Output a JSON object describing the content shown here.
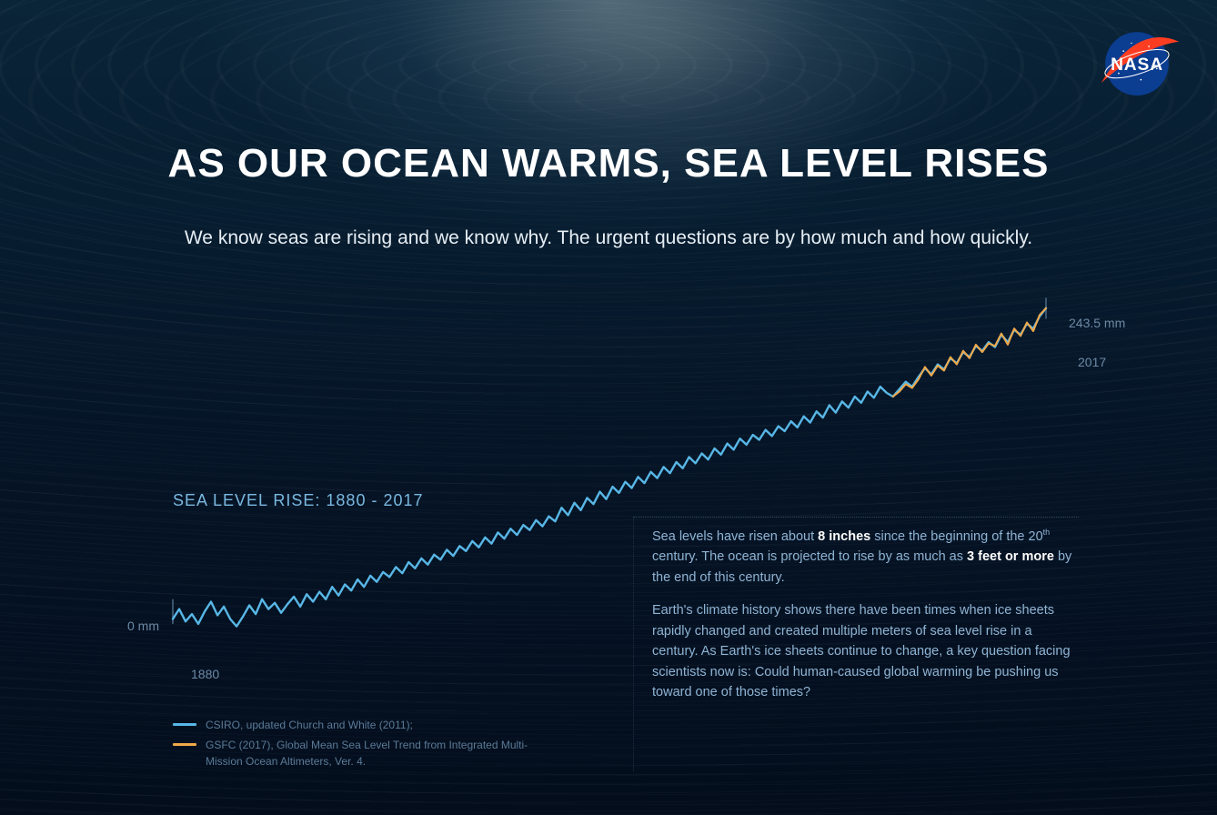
{
  "logo": {
    "name": "NASA"
  },
  "title": "AS OUR OCEAN WARMS, SEA LEVEL RISES",
  "subtitle": "We know seas are rising and we know why.  The urgent questions are by how much and how quickly.",
  "chart": {
    "type": "line",
    "title": "SEA LEVEL RISE: 1880 - 2017",
    "xlim": [
      1880,
      2017
    ],
    "ylim": [
      -15,
      250
    ],
    "x_start_label": "1880",
    "y_start_label": "0 mm",
    "x_end_label": "2017",
    "y_end_label": "243.5 mm",
    "background": "transparent",
    "axis_label_color": "#6d8aa6",
    "axis_label_fontsize": 14,
    "title_color": "#7ab8e0",
    "title_fontsize": 18,
    "series": [
      {
        "name": "CSIRO",
        "color": "#58b7e6",
        "line_width": 2.4,
        "data": [
          [
            1880,
            -8
          ],
          [
            1881,
            0
          ],
          [
            1882,
            -10
          ],
          [
            1883,
            -4
          ],
          [
            1884,
            -12
          ],
          [
            1885,
            -2
          ],
          [
            1886,
            6
          ],
          [
            1887,
            -5
          ],
          [
            1888,
            2
          ],
          [
            1889,
            -8
          ],
          [
            1890,
            -14
          ],
          [
            1891,
            -6
          ],
          [
            1892,
            3
          ],
          [
            1893,
            -4
          ],
          [
            1894,
            8
          ],
          [
            1895,
            0
          ],
          [
            1896,
            5
          ],
          [
            1897,
            -3
          ],
          [
            1898,
            4
          ],
          [
            1899,
            10
          ],
          [
            1900,
            2
          ],
          [
            1901,
            12
          ],
          [
            1902,
            6
          ],
          [
            1903,
            14
          ],
          [
            1904,
            8
          ],
          [
            1905,
            18
          ],
          [
            1906,
            11
          ],
          [
            1907,
            20
          ],
          [
            1908,
            15
          ],
          [
            1909,
            24
          ],
          [
            1910,
            18
          ],
          [
            1911,
            27
          ],
          [
            1912,
            22
          ],
          [
            1913,
            30
          ],
          [
            1914,
            26
          ],
          [
            1915,
            34
          ],
          [
            1916,
            29
          ],
          [
            1917,
            38
          ],
          [
            1918,
            33
          ],
          [
            1919,
            41
          ],
          [
            1920,
            36
          ],
          [
            1921,
            44
          ],
          [
            1922,
            40
          ],
          [
            1923,
            48
          ],
          [
            1924,
            43
          ],
          [
            1925,
            51
          ],
          [
            1926,
            47
          ],
          [
            1927,
            55
          ],
          [
            1928,
            50
          ],
          [
            1929,
            58
          ],
          [
            1930,
            53
          ],
          [
            1931,
            62
          ],
          [
            1932,
            57
          ],
          [
            1933,
            65
          ],
          [
            1934,
            60
          ],
          [
            1935,
            68
          ],
          [
            1936,
            64
          ],
          [
            1937,
            72
          ],
          [
            1938,
            67
          ],
          [
            1939,
            75
          ],
          [
            1940,
            71
          ],
          [
            1941,
            82
          ],
          [
            1942,
            76
          ],
          [
            1943,
            86
          ],
          [
            1944,
            80
          ],
          [
            1945,
            90
          ],
          [
            1946,
            85
          ],
          [
            1947,
            95
          ],
          [
            1948,
            89
          ],
          [
            1949,
            99
          ],
          [
            1950,
            94
          ],
          [
            1951,
            103
          ],
          [
            1952,
            98
          ],
          [
            1953,
            107
          ],
          [
            1954,
            102
          ],
          [
            1955,
            111
          ],
          [
            1956,
            106
          ],
          [
            1957,
            115
          ],
          [
            1958,
            110
          ],
          [
            1959,
            119
          ],
          [
            1960,
            114
          ],
          [
            1961,
            123
          ],
          [
            1962,
            118
          ],
          [
            1963,
            126
          ],
          [
            1964,
            121
          ],
          [
            1965,
            130
          ],
          [
            1966,
            125
          ],
          [
            1967,
            134
          ],
          [
            1968,
            129
          ],
          [
            1969,
            138
          ],
          [
            1970,
            133
          ],
          [
            1971,
            141
          ],
          [
            1972,
            137
          ],
          [
            1973,
            145
          ],
          [
            1974,
            140
          ],
          [
            1975,
            148
          ],
          [
            1976,
            144
          ],
          [
            1977,
            152
          ],
          [
            1978,
            147
          ],
          [
            1979,
            156
          ],
          [
            1980,
            151
          ],
          [
            1981,
            160
          ],
          [
            1982,
            155
          ],
          [
            1983,
            165
          ],
          [
            1984,
            159
          ],
          [
            1985,
            168
          ],
          [
            1986,
            163
          ],
          [
            1987,
            172
          ],
          [
            1988,
            167
          ],
          [
            1989,
            176
          ],
          [
            1990,
            171
          ],
          [
            1991,
            180
          ],
          [
            1992,
            175
          ],
          [
            1993,
            172
          ],
          [
            1994,
            178
          ],
          [
            1995,
            184
          ],
          [
            1996,
            180
          ],
          [
            1997,
            188
          ],
          [
            1998,
            195
          ],
          [
            1999,
            190
          ],
          [
            2000,
            198
          ],
          [
            2001,
            194
          ],
          [
            2002,
            203
          ],
          [
            2003,
            199
          ],
          [
            2004,
            208
          ],
          [
            2005,
            204
          ],
          [
            2006,
            213
          ],
          [
            2007,
            209
          ],
          [
            2008,
            216
          ],
          [
            2009,
            212
          ],
          [
            2010,
            222
          ],
          [
            2011,
            216
          ],
          [
            2012,
            226
          ],
          [
            2013,
            222
          ],
          [
            2014,
            231
          ],
          [
            2015,
            227
          ],
          [
            2016,
            237
          ],
          [
            2017,
            243.5
          ]
        ]
      },
      {
        "name": "GSFC",
        "color": "#f0a94a",
        "line_width": 2,
        "data": [
          [
            1993,
            172
          ],
          [
            1994,
            176
          ],
          [
            1995,
            182
          ],
          [
            1996,
            179
          ],
          [
            1997,
            186
          ],
          [
            1998,
            196
          ],
          [
            1999,
            189
          ],
          [
            2000,
            197
          ],
          [
            2001,
            193
          ],
          [
            2002,
            204
          ],
          [
            2003,
            198
          ],
          [
            2004,
            209
          ],
          [
            2005,
            203
          ],
          [
            2006,
            214
          ],
          [
            2007,
            208
          ],
          [
            2008,
            215
          ],
          [
            2009,
            213
          ],
          [
            2010,
            223
          ],
          [
            2011,
            214
          ],
          [
            2012,
            227
          ],
          [
            2013,
            221
          ],
          [
            2014,
            232
          ],
          [
            2015,
            225
          ],
          [
            2016,
            238
          ],
          [
            2017,
            243.5
          ]
        ]
      }
    ]
  },
  "info_box": {
    "border_color": "rgba(130,170,200,0.35)",
    "text_color": "#8fb4d4",
    "fontsize": 14.5,
    "p1_a": "Sea levels have risen about ",
    "p1_b": "8 inches",
    "p1_c": " since the beginning of the 20",
    "p1_sup": "th",
    "p1_d": " century. The ocean is projected to rise by as much as ",
    "p1_e": "3 feet or more",
    "p1_f": " by the end of this century.",
    "p2": "Earth's climate history shows there have been times when ice sheets rapidly changed and created multiple meters of sea level rise in a century. As Earth's ice sheets continue to change, a key question facing scientists now is: Could human-caused global warming be pushing us toward one of those times?"
  },
  "legend": {
    "items": [
      {
        "color": "#58b7e6",
        "label": "CSIRO, updated Church and White (2011);"
      },
      {
        "color": "#f0a94a",
        "label": "GSFC (2017), Global Mean Sea Level Trend from Integrated Multi-Mission Ocean Altimeters, Ver. 4."
      }
    ]
  }
}
